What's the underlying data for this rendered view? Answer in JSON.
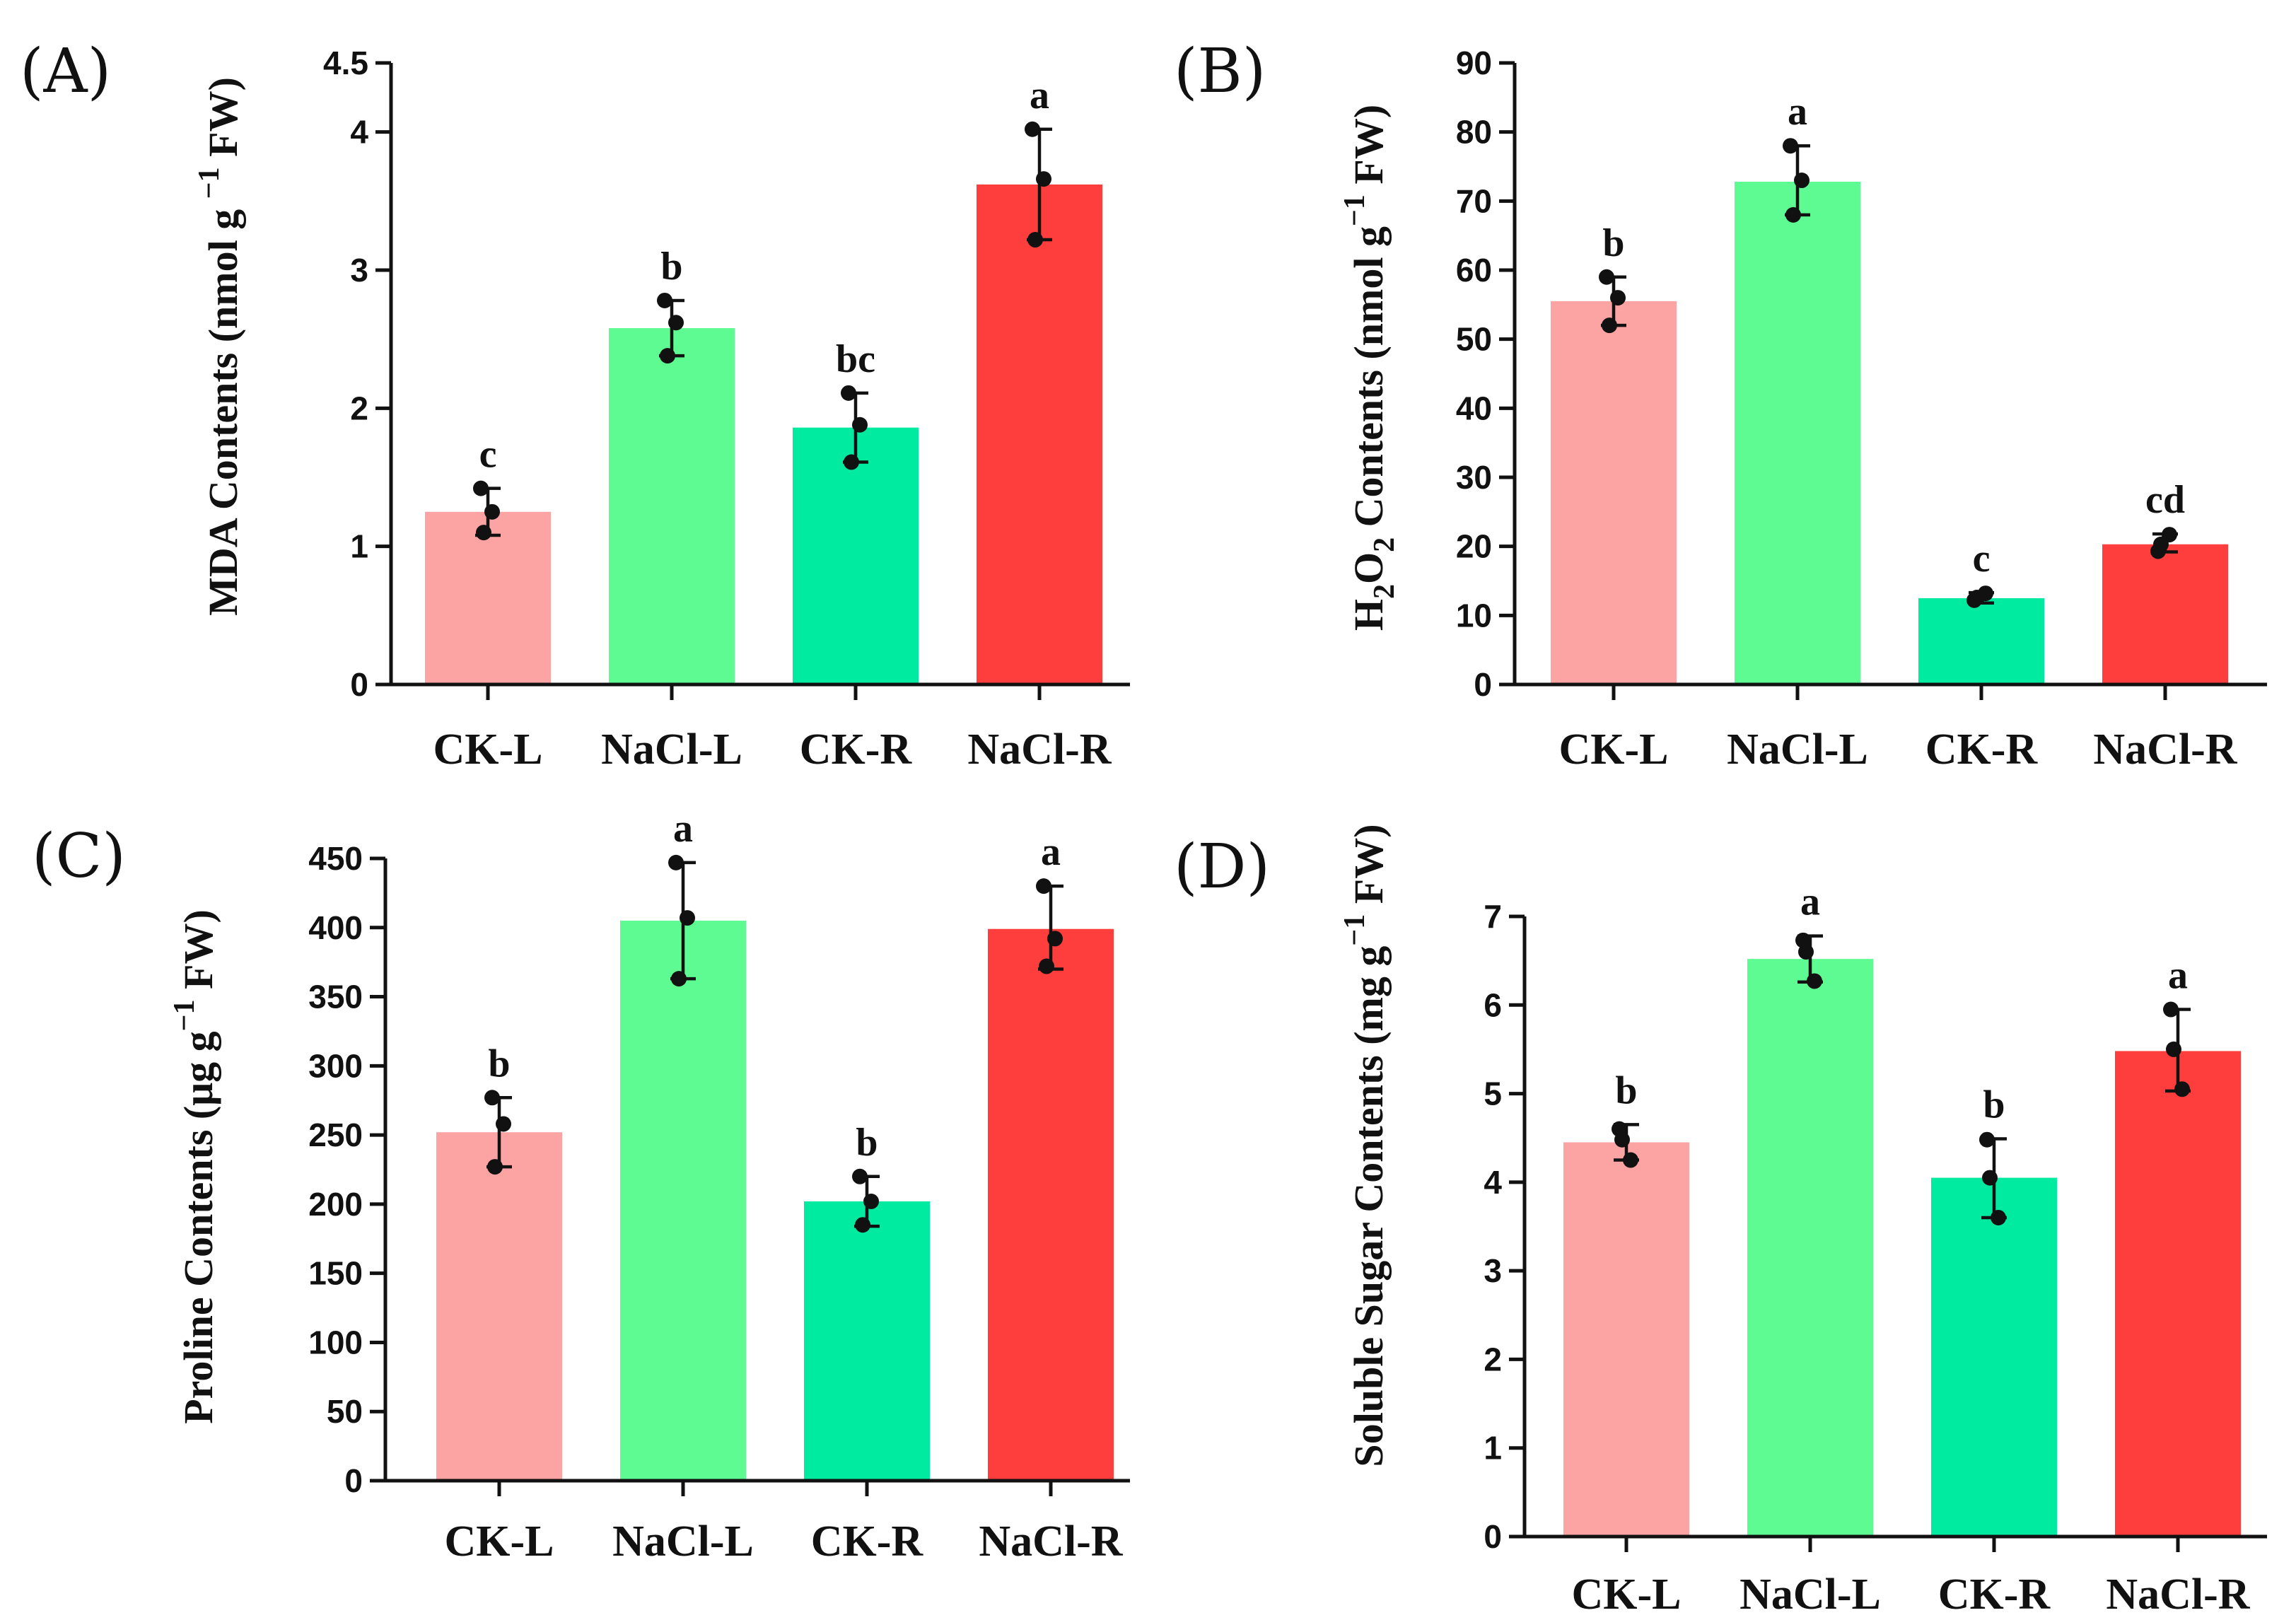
{
  "chart_data": [
    {
      "panel": "(A)",
      "type": "bar",
      "categories": [
        "CK-L",
        "NaCl-L",
        "CK-R",
        "NaCl-R"
      ],
      "values": [
        1.25,
        2.58,
        1.86,
        3.62
      ],
      "error_high": [
        1.42,
        2.78,
        2.11,
        4.02
      ],
      "error_low": [
        1.08,
        2.38,
        1.61,
        3.22
      ],
      "points": [
        [
          1.42,
          1.25,
          1.1
        ],
        [
          2.78,
          2.62,
          2.38
        ],
        [
          2.11,
          1.88,
          1.61
        ],
        [
          4.02,
          3.66,
          3.22
        ]
      ],
      "letters": [
        "c",
        "b",
        "bc",
        "a"
      ],
      "ylim": [
        0,
        4.5
      ],
      "yticks": [
        0,
        1,
        2,
        3,
        4,
        4.5
      ],
      "ytick_labels": [
        "0",
        "1",
        "2",
        "3",
        "4",
        "4.5"
      ],
      "ylabel": {
        "pre": "MDA Contents (nmol g",
        "mid": " ",
        "sup": "−1",
        "post": " FW)"
      }
    },
    {
      "panel": "(B)",
      "type": "bar",
      "categories": [
        "CK-L",
        "NaCl-L",
        "CK-R",
        "NaCl-R"
      ],
      "values": [
        55.5,
        72.8,
        12.5,
        20.3
      ],
      "error_high": [
        59,
        78,
        13.3,
        21.8
      ],
      "error_low": [
        52,
        68,
        11.8,
        19.2
      ],
      "points": [
        [
          59,
          56,
          52
        ],
        [
          78,
          73,
          68
        ],
        [
          12.2,
          13.2,
          12.6
        ],
        [
          19.3,
          21.7,
          20.3
        ]
      ],
      "letters": [
        "b",
        "a",
        "c",
        "cd"
      ],
      "ylim": [
        0,
        90
      ],
      "yticks": [
        0,
        10,
        20,
        30,
        40,
        50,
        60,
        70,
        80,
        90
      ],
      "ytick_labels": [
        "0",
        "10",
        "20",
        "30",
        "40",
        "50",
        "60",
        "70",
        "80",
        "90"
      ],
      "ylabel": {
        "pre": "H",
        "sub1": "2",
        "mid": "O",
        "sub2": "2",
        "post": " Contents (nmol g",
        "sup": "−1",
        "end": " FW)"
      }
    },
    {
      "panel": "(C)",
      "type": "bar",
      "categories": [
        "CK-L",
        "NaCl-L",
        "CK-R",
        "NaCl-R"
      ],
      "values": [
        252,
        405,
        202,
        399
      ],
      "error_high": [
        277,
        447,
        220,
        430
      ],
      "error_low": [
        227,
        363,
        184,
        370
      ],
      "points": [
        [
          277,
          258,
          227
        ],
        [
          447,
          407,
          363
        ],
        [
          220,
          202,
          185
        ],
        [
          430,
          392,
          372
        ]
      ],
      "letters": [
        "b",
        "a",
        "b",
        "a"
      ],
      "ylim": [
        0,
        450
      ],
      "yticks": [
        0,
        50,
        100,
        150,
        200,
        250,
        300,
        350,
        400,
        450
      ],
      "ytick_labels": [
        "0",
        "50",
        "100",
        "150",
        "200",
        "250",
        "300",
        "350",
        "400",
        "450"
      ],
      "ylabel": {
        "pre": "Proline Contents (μg g",
        "sup": "−1",
        "post": " FW)"
      }
    },
    {
      "panel": "(D)",
      "type": "bar",
      "categories": [
        "CK-L",
        "NaCl-L",
        "CK-R",
        "NaCl-R"
      ],
      "values": [
        4.45,
        6.52,
        4.05,
        5.48
      ],
      "error_high": [
        4.65,
        6.78,
        4.49,
        5.95
      ],
      "error_low": [
        4.25,
        6.26,
        3.6,
        5.03
      ],
      "points": [
        [
          4.6,
          4.25,
          4.48
        ],
        [
          6.73,
          6.27,
          6.6
        ],
        [
          4.48,
          3.6,
          4.05
        ],
        [
          5.95,
          5.05,
          5.5
        ]
      ],
      "letters": [
        "b",
        "a",
        "b",
        "a"
      ],
      "ylim": [
        0,
        7
      ],
      "yticks": [
        0,
        1,
        2,
        3,
        4,
        5,
        6,
        7
      ],
      "ytick_labels": [
        "0",
        "1",
        "2",
        "3",
        "4",
        "5",
        "6",
        "7"
      ],
      "ylabel": {
        "pre": "Soluble Sugar Contents (mg g",
        "sup": "−1",
        "post": " FW)"
      }
    }
  ],
  "colors": [
    "#fca3a3",
    "#5efb93",
    "#00eaa0",
    "#fe3d3d"
  ]
}
